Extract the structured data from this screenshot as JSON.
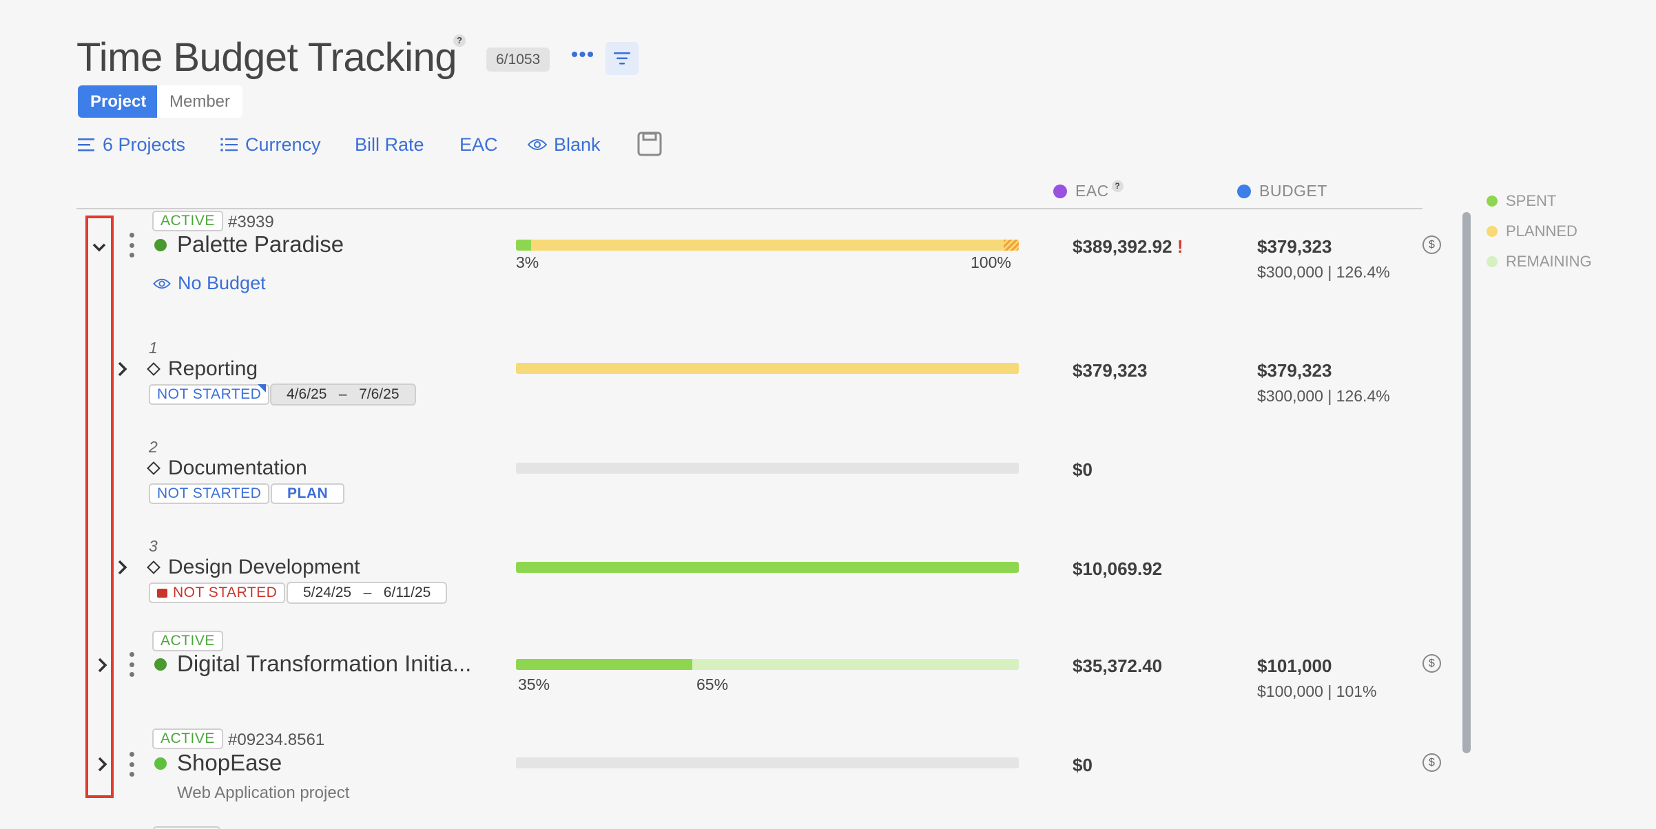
{
  "header": {
    "title": "Time Budget Tracking",
    "help": "?",
    "count": "6/1053",
    "more": "•••"
  },
  "view_toggle": {
    "project": "Project",
    "member": "Member"
  },
  "toolbar": {
    "projects": "6 Projects",
    "currency": "Currency",
    "bill_rate": "Bill Rate",
    "eac": "EAC",
    "blank": "Blank"
  },
  "columns": {
    "eac": {
      "label": "EAC",
      "help": "?",
      "color": "#9b51e0"
    },
    "budget": {
      "label": "BUDGET",
      "color": "#3d7ee8"
    }
  },
  "legend": [
    {
      "label": "SPENT",
      "color": "#8ed64f"
    },
    {
      "label": "PLANNED",
      "color": "#f8d977"
    },
    {
      "label": "REMAINING",
      "color": "#d6f0c0"
    }
  ],
  "rows": {
    "palette": {
      "status": "ACTIVE",
      "id": "#3939",
      "name": "Palette Paradise",
      "status_color": "#4a9a2f",
      "link": "No Budget",
      "spent_pct": 3,
      "spent_label": "3%",
      "planned_label": "100%",
      "eac": "$389,392.92",
      "eac_flag": "!",
      "budget": "$379,323",
      "budget_sub": "$300,000 | 126.4%",
      "dollar": "$"
    },
    "reporting": {
      "num": "1",
      "name": "Reporting",
      "status": "NOT STARTED",
      "date_start": "4/6/25",
      "date_sep": "–",
      "date_end": "7/6/25",
      "eac": "$379,323",
      "budget": "$379,323",
      "budget_sub": "$300,000 | 126.4%"
    },
    "documentation": {
      "num": "2",
      "name": "Documentation",
      "status": "NOT STARTED",
      "plan": "PLAN",
      "eac": "$0"
    },
    "design": {
      "num": "3",
      "name": "Design Development",
      "status": "NOT STARTED",
      "date_start": "5/24/25",
      "date_sep": "–",
      "date_end": "6/11/25",
      "eac": "$10,069.92"
    },
    "digital": {
      "status": "ACTIVE",
      "name": "Digital Transformation Initia...",
      "status_color": "#4a9a2f",
      "spent_pct": 35,
      "remaining_pct": 65,
      "spent_label": "35%",
      "remaining_label": "65%",
      "eac": "$35,372.40",
      "budget": "$101,000",
      "budget_sub": "$100,000 | 101%",
      "dollar": "$"
    },
    "shopease": {
      "status": "ACTIVE",
      "id": "#09234.8561",
      "name": "ShopEase",
      "status_color": "#5ec13e",
      "desc": "Web Application project",
      "eac": "$0",
      "dollar": "$"
    }
  }
}
